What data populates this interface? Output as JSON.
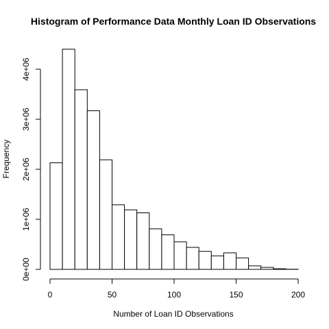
{
  "chart_data": {
    "type": "bar",
    "title": "Histogram of Performance Data Monthly Loan ID Observations",
    "xlabel": "Number of Loan ID Observations",
    "ylabel": "Frequency",
    "xlim": [
      0,
      200
    ],
    "ylim": [
      0,
      4400000
    ],
    "x_ticks": [
      0,
      50,
      100,
      150,
      200
    ],
    "x_tick_labels": [
      "0",
      "50",
      "100",
      "150",
      "200"
    ],
    "y_ticks": [
      0,
      1000000,
      2000000,
      3000000,
      4000000
    ],
    "y_tick_labels": [
      "0e+00",
      "1e+06",
      "2e+06",
      "3e+06",
      "4e+06"
    ],
    "grid": false,
    "legend": "none",
    "bin_width": 10,
    "bin_starts": [
      0,
      10,
      20,
      30,
      40,
      50,
      60,
      70,
      80,
      90,
      100,
      110,
      120,
      130,
      140,
      150,
      160,
      170,
      180,
      190
    ],
    "values": [
      2130000,
      4400000,
      3590000,
      3170000,
      2190000,
      1290000,
      1190000,
      1130000,
      810000,
      690000,
      550000,
      440000,
      360000,
      270000,
      330000,
      230000,
      70000,
      40000,
      12000,
      3000
    ]
  }
}
